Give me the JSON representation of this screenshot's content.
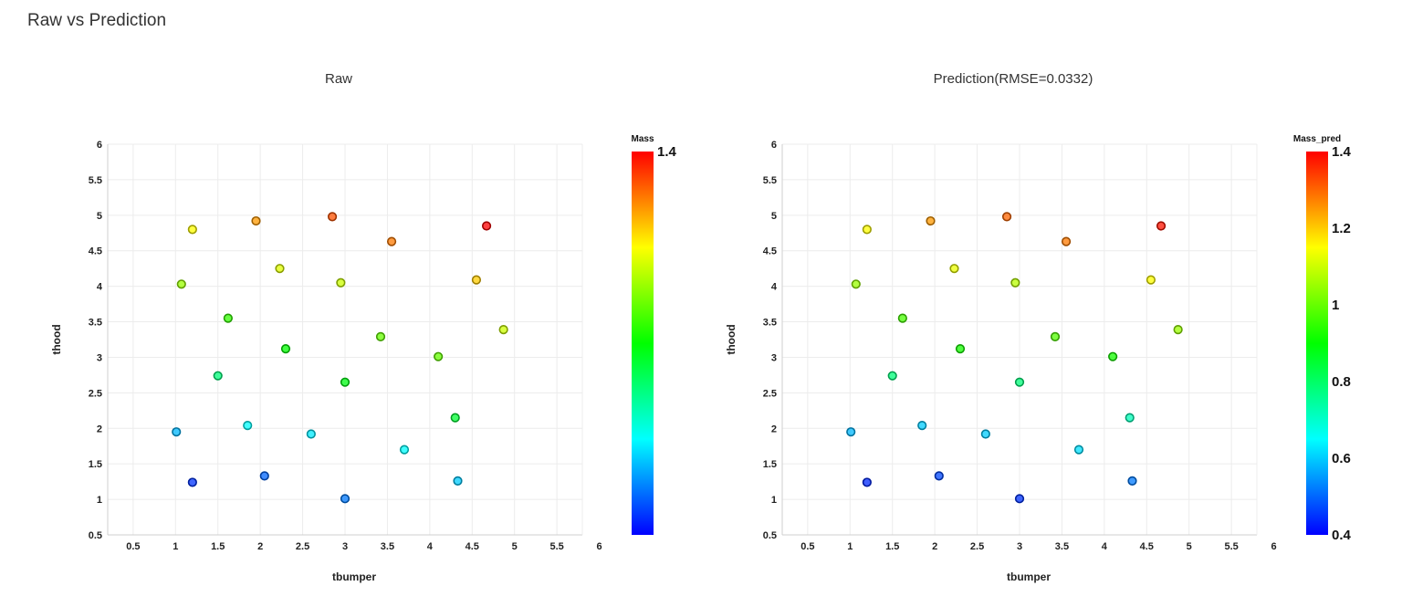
{
  "page_title": "Raw vs Prediction",
  "chart_data": [
    {
      "type": "scatter",
      "title": "Raw",
      "xlabel": "tbumper",
      "ylabel": "thood",
      "xlim": [
        0.2,
        5.8
      ],
      "ylim": [
        0.5,
        6
      ],
      "xticks": [
        "0.5",
        "1",
        "1.5",
        "2",
        "2.5",
        "3",
        "3.5",
        "4",
        "4.5",
        "5",
        "5.5",
        "6"
      ],
      "yticks": [
        "0.5",
        "1",
        "1.5",
        "2",
        "2.5",
        "3",
        "3.5",
        "4",
        "4.5",
        "5",
        "5.5",
        "6"
      ],
      "grid": true,
      "colorbar": {
        "title": "Mass",
        "min": 0.4,
        "max": 1.4,
        "tick_labels": [
          "1.4"
        ],
        "tick_values": [
          1.4
        ]
      },
      "points": [
        {
          "x": 1.2,
          "y": 4.8,
          "c": 1.15
        },
        {
          "x": 1.95,
          "y": 4.92,
          "c": 1.25
        },
        {
          "x": 2.85,
          "y": 4.98,
          "c": 1.32
        },
        {
          "x": 3.55,
          "y": 4.63,
          "c": 1.28
        },
        {
          "x": 4.67,
          "y": 4.85,
          "c": 1.4
        },
        {
          "x": 1.07,
          "y": 4.03,
          "c": 1.05
        },
        {
          "x": 2.23,
          "y": 4.25,
          "c": 1.12
        },
        {
          "x": 2.95,
          "y": 4.05,
          "c": 1.1
        },
        {
          "x": 4.55,
          "y": 4.09,
          "c": 1.2
        },
        {
          "x": 1.62,
          "y": 3.55,
          "c": 0.95
        },
        {
          "x": 3.42,
          "y": 3.29,
          "c": 1.0
        },
        {
          "x": 4.87,
          "y": 3.39,
          "c": 1.1
        },
        {
          "x": 2.3,
          "y": 3.12,
          "c": 0.9
        },
        {
          "x": 4.1,
          "y": 3.01,
          "c": 1.0
        },
        {
          "x": 1.5,
          "y": 2.74,
          "c": 0.78
        },
        {
          "x": 3.0,
          "y": 2.65,
          "c": 0.88
        },
        {
          "x": 4.3,
          "y": 2.15,
          "c": 0.85
        },
        {
          "x": 1.01,
          "y": 1.95,
          "c": 0.58
        },
        {
          "x": 1.85,
          "y": 2.04,
          "c": 0.65
        },
        {
          "x": 2.6,
          "y": 1.92,
          "c": 0.63
        },
        {
          "x": 3.7,
          "y": 1.7,
          "c": 0.65
        },
        {
          "x": 1.2,
          "y": 1.24,
          "c": 0.45
        },
        {
          "x": 2.05,
          "y": 1.33,
          "c": 0.5
        },
        {
          "x": 3.0,
          "y": 1.01,
          "c": 0.52
        },
        {
          "x": 4.33,
          "y": 1.26,
          "c": 0.6
        }
      ]
    },
    {
      "type": "scatter",
      "title": "Prediction(RMSE=0.0332)",
      "xlabel": "tbumper",
      "ylabel": "thood",
      "xlim": [
        0.2,
        5.8
      ],
      "ylim": [
        0.5,
        6
      ],
      "xticks": [
        "0.5",
        "1",
        "1.5",
        "2",
        "2.5",
        "3",
        "3.5",
        "4",
        "4.5",
        "5",
        "5.5",
        "6"
      ],
      "yticks": [
        "0.5",
        "1",
        "1.5",
        "2",
        "2.5",
        "3",
        "3.5",
        "4",
        "4.5",
        "5",
        "5.5",
        "6"
      ],
      "grid": true,
      "colorbar": {
        "title": "Mass_pred",
        "min": 0.4,
        "max": 1.4,
        "tick_labels": [
          "0.4",
          "0.6",
          "0.8",
          "1",
          "1.2",
          "1.4"
        ],
        "tick_values": [
          0.4,
          0.6,
          0.8,
          1.0,
          1.2,
          1.4
        ]
      },
      "points": [
        {
          "x": 1.2,
          "y": 4.8,
          "c": 1.15
        },
        {
          "x": 1.95,
          "y": 4.92,
          "c": 1.25
        },
        {
          "x": 2.85,
          "y": 4.98,
          "c": 1.3
        },
        {
          "x": 3.55,
          "y": 4.63,
          "c": 1.28
        },
        {
          "x": 4.67,
          "y": 4.85,
          "c": 1.38
        },
        {
          "x": 1.07,
          "y": 4.03,
          "c": 1.05
        },
        {
          "x": 2.23,
          "y": 4.25,
          "c": 1.13
        },
        {
          "x": 2.95,
          "y": 4.05,
          "c": 1.08
        },
        {
          "x": 4.55,
          "y": 4.09,
          "c": 1.15
        },
        {
          "x": 1.62,
          "y": 3.55,
          "c": 0.97
        },
        {
          "x": 3.42,
          "y": 3.29,
          "c": 0.98
        },
        {
          "x": 4.87,
          "y": 3.39,
          "c": 1.05
        },
        {
          "x": 2.3,
          "y": 3.12,
          "c": 0.92
        },
        {
          "x": 4.1,
          "y": 3.01,
          "c": 0.92
        },
        {
          "x": 1.5,
          "y": 2.74,
          "c": 0.78
        },
        {
          "x": 3.0,
          "y": 2.65,
          "c": 0.78
        },
        {
          "x": 4.3,
          "y": 2.15,
          "c": 0.72
        },
        {
          "x": 1.01,
          "y": 1.95,
          "c": 0.58
        },
        {
          "x": 1.85,
          "y": 2.04,
          "c": 0.6
        },
        {
          "x": 2.6,
          "y": 1.92,
          "c": 0.6
        },
        {
          "x": 3.7,
          "y": 1.7,
          "c": 0.62
        },
        {
          "x": 1.2,
          "y": 1.24,
          "c": 0.44
        },
        {
          "x": 2.05,
          "y": 1.33,
          "c": 0.47
        },
        {
          "x": 3.0,
          "y": 1.01,
          "c": 0.45
        },
        {
          "x": 4.33,
          "y": 1.26,
          "c": 0.52
        }
      ]
    }
  ]
}
